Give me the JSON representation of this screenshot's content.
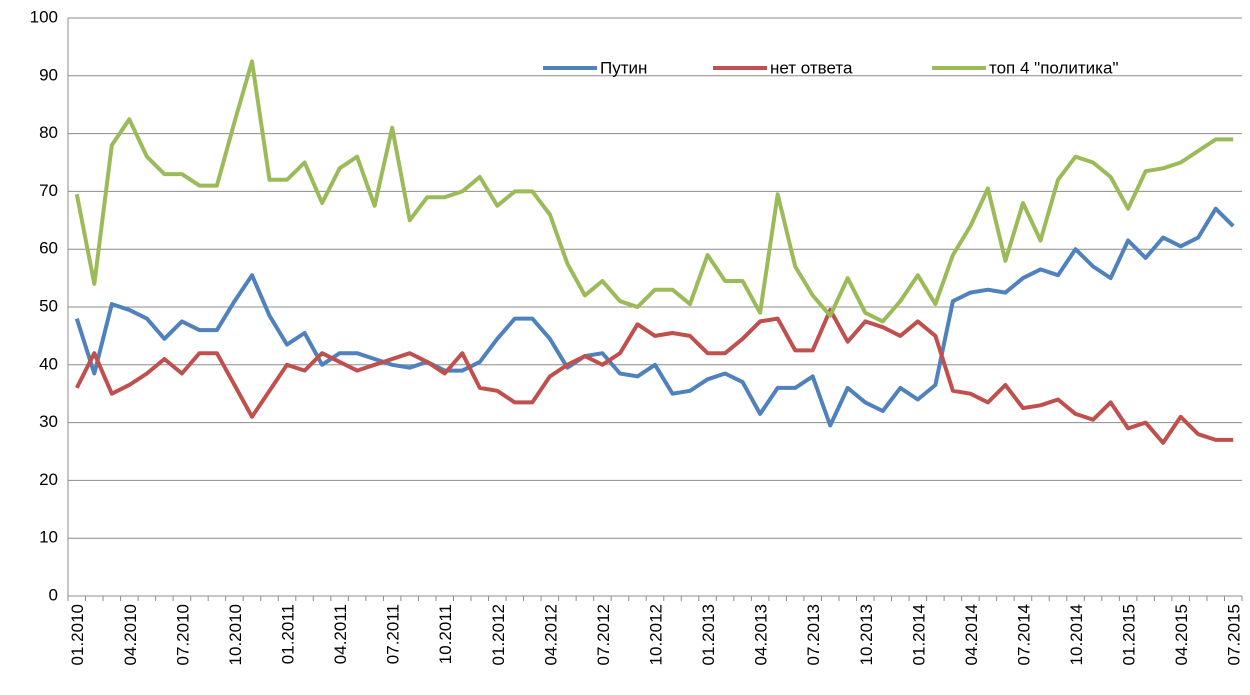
{
  "chart_data": {
    "type": "line",
    "categories": [
      "01.2010",
      null,
      null,
      "04.2010",
      null,
      null,
      "07.2010",
      null,
      null,
      "10.2010",
      null,
      null,
      "01.2011",
      null,
      null,
      "04.2011",
      null,
      null,
      "07.2011",
      null,
      null,
      "10.2011",
      null,
      null,
      "01.2012",
      null,
      null,
      "04.2012",
      null,
      null,
      "07.2012",
      null,
      null,
      "10.2012",
      null,
      null,
      "01.2013",
      null,
      null,
      "04.2013",
      null,
      null,
      "07.2013",
      null,
      null,
      "10.2013",
      null,
      null,
      "01.2014",
      null,
      null,
      "04.2014",
      null,
      null,
      "07.2014",
      null,
      null,
      "10.2014",
      null,
      null,
      "01.2015",
      null,
      null,
      "04.2015",
      null,
      null,
      "07.2015"
    ],
    "series": [
      {
        "name": "Путин",
        "color": "#4f81bd",
        "values": [
          48,
          38.5,
          50.5,
          49.5,
          48,
          44.5,
          47.5,
          46,
          46,
          51,
          55.5,
          48.5,
          43.5,
          45.5,
          40,
          42,
          42,
          41,
          40,
          39.5,
          40.5,
          39,
          39,
          40.5,
          44.5,
          48,
          48,
          44.5,
          39.5,
          41.5,
          42,
          38.5,
          38,
          40,
          35,
          35.5,
          37.5,
          38.5,
          37,
          31.5,
          36,
          36,
          38,
          29.5,
          36,
          33.5,
          32,
          36,
          34,
          36.5,
          51,
          52.5,
          53,
          52.5,
          55,
          56.5,
          55.5,
          60,
          57,
          55,
          61.5,
          58.5,
          62,
          60.5,
          62,
          67,
          64
        ]
      },
      {
        "name": "нет ответа",
        "color": "#c0504d",
        "values": [
          36,
          42,
          35,
          36.5,
          38.5,
          41,
          38.5,
          42,
          42,
          36.5,
          31,
          35.5,
          40,
          39,
          42,
          40.5,
          39,
          40,
          41,
          42,
          40.5,
          38.5,
          42,
          36,
          35.5,
          33.5,
          33.5,
          38,
          40,
          41.5,
          40,
          42,
          47,
          45,
          45.5,
          45,
          42,
          42,
          44.5,
          47.5,
          48,
          42.5,
          42.5,
          49.5,
          44,
          47.5,
          46.5,
          45,
          47.5,
          45,
          35.5,
          35,
          33.5,
          36.5,
          32.5,
          33,
          34,
          31.5,
          30.5,
          33.5,
          29,
          30,
          26.5,
          31,
          28,
          27,
          27
        ]
      },
      {
        "name": "топ 4 \"политика\"",
        "color": "#9bbb59",
        "values": [
          69.5,
          54,
          78,
          82.5,
          76,
          73,
          73,
          71,
          71,
          82,
          92.5,
          72,
          72,
          75,
          68,
          74,
          76,
          67.5,
          81,
          65,
          69,
          69,
          70,
          72.5,
          67.5,
          70,
          70,
          66,
          57.5,
          52,
          54.5,
          51,
          50,
          53,
          53,
          50.5,
          59,
          54.5,
          54.5,
          49,
          69.5,
          57,
          52,
          48.5,
          55,
          49,
          47.5,
          51,
          55.5,
          50.5,
          59,
          64,
          70.5,
          58,
          68,
          61.5,
          72,
          76,
          75,
          72.5,
          67,
          73.5,
          74,
          75,
          77,
          79,
          79
        ]
      }
    ],
    "ylim": [
      0,
      100
    ],
    "yticks": [
      0,
      10,
      20,
      30,
      40,
      50,
      60,
      70,
      80,
      90,
      100
    ],
    "grid": true,
    "legend": "top-right"
  }
}
